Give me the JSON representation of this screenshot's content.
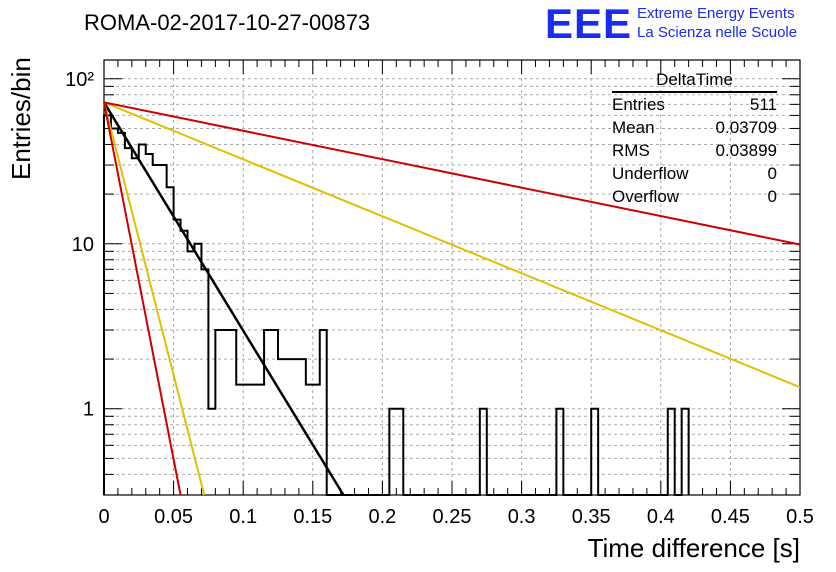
{
  "chart_data": {
    "type": "histogram",
    "title": "ROMA-02-2017-10-27-00873",
    "xlabel": "Time difference [s]",
    "ylabel": "Entries/bin",
    "xlim": [
      0,
      0.5
    ],
    "ylim": [
      0.3,
      130
    ],
    "yscale": "log",
    "grid": true,
    "x_ticks": [
      "0",
      "0.05",
      "0.1",
      "0.15",
      "0.2",
      "0.25",
      "0.3",
      "0.35",
      "0.4",
      "0.45",
      "0.5"
    ],
    "y_ticks": [
      "1",
      "10",
      "10²"
    ],
    "bin_width": 0.005,
    "histogram": {
      "name": "DeltaTime",
      "bin_start": 0,
      "counts": [
        60,
        50,
        47,
        38,
        33,
        40,
        35,
        30,
        30,
        22,
        14,
        12,
        9,
        10,
        7,
        1,
        3,
        3,
        3,
        1.4,
        1.4,
        1.4,
        1.4,
        3,
        3,
        2,
        2,
        2,
        2,
        1.4,
        1.4,
        3,
        0,
        0,
        0,
        0,
        0,
        0,
        0,
        0,
        0,
        1,
        1,
        0,
        0,
        0,
        0,
        0,
        0,
        0,
        0,
        0,
        0,
        0,
        1,
        0,
        0,
        0,
        0,
        0,
        0,
        0,
        0,
        0,
        0,
        1,
        0,
        0,
        0,
        0,
        1,
        0,
        0,
        0,
        0,
        0,
        0,
        0,
        0,
        0,
        0,
        1,
        0,
        1
      ]
    },
    "fits": [
      {
        "color": "#000000",
        "x": [
          0,
          0.172
        ],
        "y": [
          72,
          0.3
        ]
      },
      {
        "color": "#e0c000",
        "x": [
          0,
          0.5
        ],
        "y": [
          72,
          1.35
        ]
      },
      {
        "color": "#e0c000",
        "x": [
          0,
          0.072
        ],
        "y": [
          72,
          0.3
        ]
      },
      {
        "color": "#cc0000",
        "x": [
          0,
          0.5
        ],
        "y": [
          72,
          9.9
        ]
      },
      {
        "color": "#cc0000",
        "x": [
          0,
          0.055
        ],
        "y": [
          72,
          0.3
        ]
      }
    ],
    "stats": {
      "name": "DeltaTime",
      "rows": [
        {
          "label": "Entries",
          "value": "511"
        },
        {
          "label": "Mean",
          "value": "0.03709"
        },
        {
          "label": "RMS",
          "value": "0.03899"
        },
        {
          "label": "Underflow",
          "value": "0"
        },
        {
          "label": "Overflow",
          "value": "0"
        }
      ]
    }
  },
  "branding": {
    "logo": "EEE",
    "line1": "Extreme Energy Events",
    "line2": "La Scienza nelle Scuole"
  }
}
